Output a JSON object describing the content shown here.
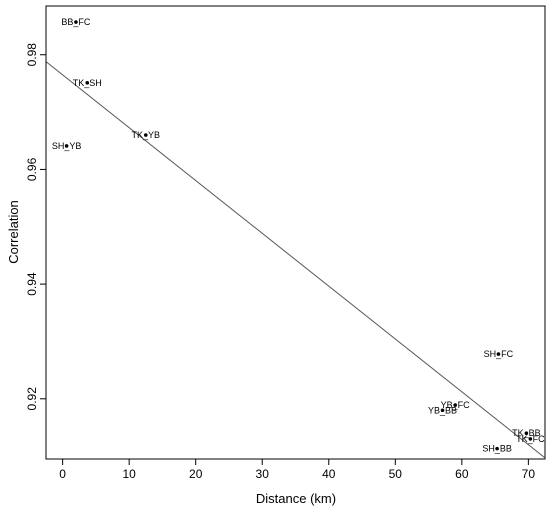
{
  "chart_data": {
    "type": "scatter",
    "xlabel": "Distance (km)",
    "ylabel": "Correlation",
    "xlim": [
      -2.5,
      72.5
    ],
    "ylim": [
      0.9095,
      0.9885
    ],
    "x_ticks": [
      0,
      10,
      20,
      30,
      40,
      50,
      60,
      70
    ],
    "y_ticks": [
      0.92,
      0.94,
      0.96,
      0.98
    ],
    "points": [
      {
        "label": "BB_FC",
        "x": 2.0,
        "y": 0.9857
      },
      {
        "label": "TK_SH",
        "x": 3.7,
        "y": 0.9751
      },
      {
        "label": "TK_YB",
        "x": 12.5,
        "y": 0.966
      },
      {
        "label": "SH_YB",
        "x": 0.6,
        "y": 0.9641
      },
      {
        "label": "SH_FC",
        "x": 65.5,
        "y": 0.9278
      },
      {
        "label": "YB_FC",
        "x": 59.0,
        "y": 0.9189
      },
      {
        "label": "YB_BB",
        "x": 57.1,
        "y": 0.918
      },
      {
        "label": "TK_BB",
        "x": 69.7,
        "y": 0.914
      },
      {
        "label": "TK_FC",
        "x": 70.3,
        "y": 0.913
      },
      {
        "label": "SH_BB",
        "x": 65.3,
        "y": 0.9113
      }
    ],
    "fit_line": {
      "x": [
        -2.5,
        72.5
      ],
      "y": [
        0.9788,
        0.9097
      ]
    },
    "grid": false,
    "legend": "none"
  }
}
